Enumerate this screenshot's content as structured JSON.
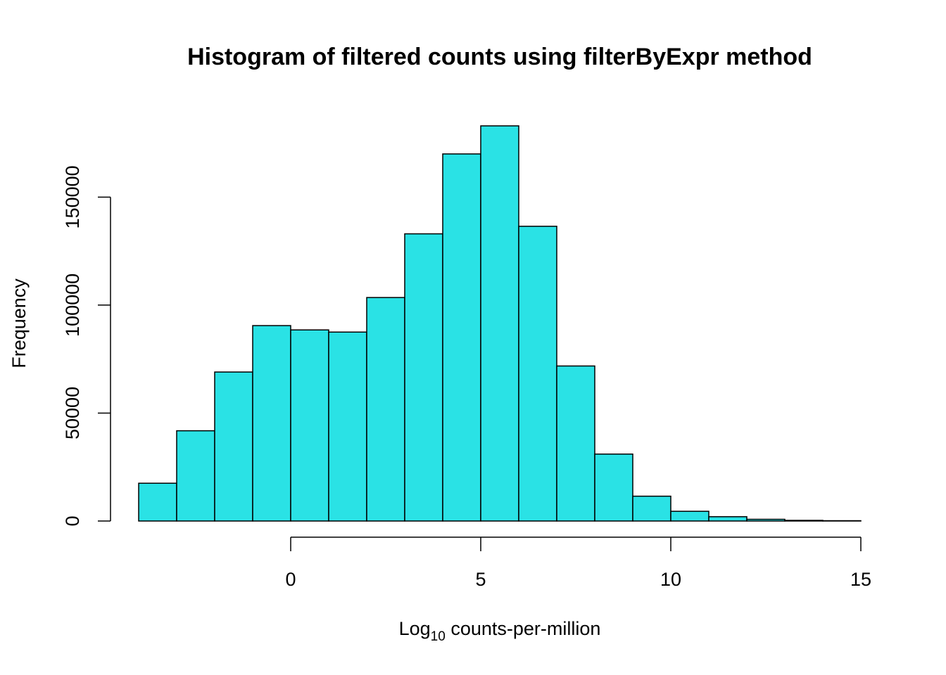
{
  "chart_data": {
    "type": "bar",
    "title": "Histogram of filtered counts using filterByExpr method",
    "xlabel_main": "Log",
    "xlabel_sub": "10",
    "xlabel_rest": " counts-per-million",
    "ylabel": "Frequency",
    "bin_edges": [
      -4,
      -3,
      -2,
      -1,
      0,
      1,
      2,
      3,
      4,
      5,
      6,
      7,
      8,
      9,
      10,
      11,
      12,
      13,
      14,
      15
    ],
    "values": [
      17500,
      41800,
      69000,
      90500,
      88500,
      87500,
      103500,
      133000,
      170000,
      183000,
      136500,
      71800,
      31000,
      11500,
      4500,
      2000,
      800,
      300,
      150
    ],
    "x_ticks": [
      0,
      5,
      10,
      15
    ],
    "x_tick_labels": [
      "0",
      "5",
      "10",
      "15"
    ],
    "y_ticks": [
      0,
      50000,
      100000,
      150000
    ],
    "y_tick_labels": [
      "0",
      "50000",
      "100000",
      "150000"
    ],
    "xlim": [
      -4,
      15
    ],
    "ylim": [
      0,
      183000
    ],
    "bar_color": "#2AE2E5",
    "grid": false
  }
}
